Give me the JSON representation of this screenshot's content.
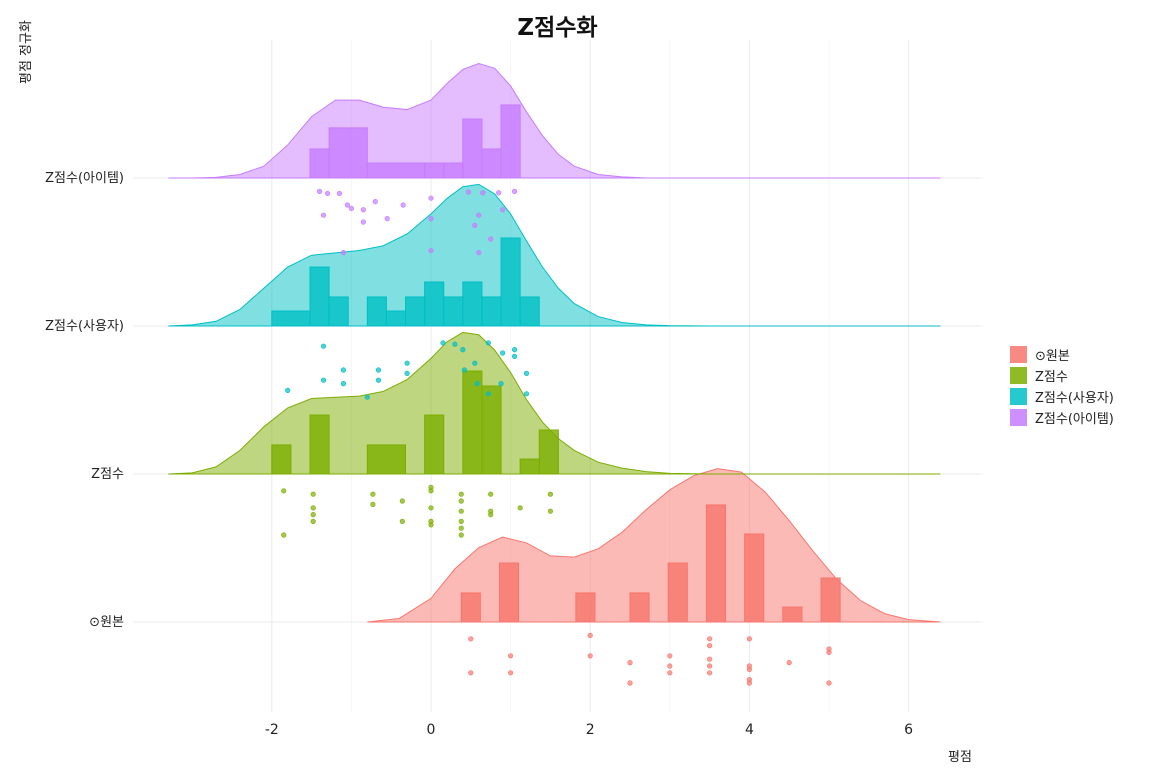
{
  "chart_data": {
    "type": "raincloud",
    "title": "Z점수화",
    "xlabel": "평점",
    "ylabel": "평점 정규화",
    "xlim": [
      -3.3,
      6.9
    ],
    "x_ticks": [
      -2,
      0,
      2,
      4,
      6
    ],
    "grid": true,
    "legend_position": "right",
    "series": [
      {
        "name": "⊙원본",
        "color": "#F8766D",
        "histogram": {
          "bins": [
            [
              0.38,
              0.62,
              0.33
            ],
            [
              0.86,
              1.1,
              0.67
            ],
            [
              1.82,
              2.06,
              0.33
            ],
            [
              2.5,
              2.74,
              0.33
            ],
            [
              2.98,
              3.22,
              0.67
            ],
            [
              3.46,
              3.7,
              1.33
            ],
            [
              3.94,
              4.18,
              1.0
            ],
            [
              4.42,
              4.66,
              0.17
            ],
            [
              4.9,
              5.14,
              0.5
            ]
          ]
        },
        "density": {
          "x": [
            -0.8,
            -0.4,
            0,
            0.3,
            0.6,
            0.9,
            1.2,
            1.5,
            1.8,
            2.1,
            2.4,
            2.7,
            3.0,
            3.3,
            3.6,
            3.9,
            4.2,
            4.5,
            4.8,
            5.1,
            5.4,
            5.7,
            6.0,
            6.4
          ],
          "y": [
            0.0,
            0.03,
            0.2,
            0.45,
            0.63,
            0.72,
            0.67,
            0.56,
            0.55,
            0.62,
            0.76,
            0.95,
            1.12,
            1.24,
            1.3,
            1.27,
            1.1,
            0.86,
            0.6,
            0.36,
            0.18,
            0.07,
            0.02,
            0.0
          ]
        },
        "points": [
          [
            0.5,
            0.1
          ],
          [
            0.5,
            0.6
          ],
          [
            1.0,
            0.35
          ],
          [
            1.0,
            0.6
          ],
          [
            2.0,
            0.05
          ],
          [
            2.0,
            0.35
          ],
          [
            2.5,
            0.45
          ],
          [
            2.5,
            0.75
          ],
          [
            3.0,
            0.35
          ],
          [
            3.0,
            0.5
          ],
          [
            3.0,
            0.6
          ],
          [
            3.5,
            0.1
          ],
          [
            3.5,
            0.2
          ],
          [
            3.5,
            0.4
          ],
          [
            3.5,
            0.5
          ],
          [
            3.5,
            0.6
          ],
          [
            4.0,
            0.1
          ],
          [
            4.0,
            0.5
          ],
          [
            4.0,
            0.55
          ],
          [
            4.0,
            0.7
          ],
          [
            4.0,
            0.75
          ],
          [
            4.5,
            0.45
          ],
          [
            5.0,
            0.25
          ],
          [
            5.0,
            0.3
          ],
          [
            5.0,
            0.75
          ]
        ]
      },
      {
        "name": "Z점수",
        "color": "#7CAE00",
        "histogram": {
          "bins": [
            [
              -2.0,
              -1.76,
              0.33
            ],
            [
              -1.52,
              -1.28,
              0.67
            ],
            [
              -0.8,
              -0.32,
              0.33
            ],
            [
              -0.08,
              0.16,
              0.67
            ],
            [
              0.4,
              0.64,
              1.17
            ],
            [
              0.64,
              0.88,
              1.0
            ],
            [
              1.12,
              1.36,
              0.17
            ],
            [
              1.36,
              1.6,
              0.5
            ]
          ]
        },
        "density": {
          "x": [
            -3.3,
            -3.0,
            -2.7,
            -2.4,
            -2.1,
            -1.8,
            -1.5,
            -1.2,
            -0.9,
            -0.6,
            -0.3,
            0.0,
            0.2,
            0.4,
            0.6,
            0.8,
            1.0,
            1.2,
            1.4,
            1.6,
            1.8,
            2.1,
            2.4,
            2.7,
            3.0,
            3.5,
            4.0,
            5.0,
            6.4
          ],
          "y": [
            0.0,
            0.01,
            0.06,
            0.2,
            0.4,
            0.56,
            0.64,
            0.65,
            0.66,
            0.7,
            0.8,
            0.98,
            1.12,
            1.2,
            1.18,
            1.05,
            0.86,
            0.63,
            0.44,
            0.3,
            0.2,
            0.1,
            0.05,
            0.02,
            0.005,
            0.0,
            0.0,
            0.0,
            0.0
          ]
        },
        "points": [
          [
            -1.85,
            0.1
          ],
          [
            -1.85,
            0.75
          ],
          [
            -1.48,
            0.15
          ],
          [
            -1.48,
            0.35
          ],
          [
            -1.48,
            0.45
          ],
          [
            -1.48,
            0.55
          ],
          [
            -0.73,
            0.15
          ],
          [
            -0.73,
            0.3
          ],
          [
            -0.36,
            0.25
          ],
          [
            -0.36,
            0.55
          ],
          [
            0.0,
            0.05
          ],
          [
            0.0,
            0.1
          ],
          [
            0.0,
            0.35
          ],
          [
            0.0,
            0.55
          ],
          [
            0.0,
            0.6
          ],
          [
            0.38,
            0.15
          ],
          [
            0.38,
            0.25
          ],
          [
            0.38,
            0.4
          ],
          [
            0.38,
            0.55
          ],
          [
            0.38,
            0.65
          ],
          [
            0.38,
            0.75
          ],
          [
            0.75,
            0.15
          ],
          [
            0.75,
            0.4
          ],
          [
            0.75,
            0.45
          ],
          [
            1.12,
            0.35
          ],
          [
            1.5,
            0.15
          ],
          [
            1.5,
            0.4
          ]
        ]
      },
      {
        "name": "Z점수(사용자)",
        "color": "#00BFC4",
        "histogram": {
          "bins": [
            [
              -2.0,
              -1.52,
              0.17
            ],
            [
              -1.52,
              -1.28,
              0.67
            ],
            [
              -1.28,
              -1.04,
              0.33
            ],
            [
              -0.8,
              -0.56,
              0.33
            ],
            [
              -0.56,
              -0.32,
              0.17
            ],
            [
              -0.32,
              -0.08,
              0.33
            ],
            [
              -0.08,
              0.16,
              0.5
            ],
            [
              0.16,
              0.4,
              0.33
            ],
            [
              0.4,
              0.64,
              0.5
            ],
            [
              0.64,
              0.88,
              0.33
            ],
            [
              0.88,
              1.12,
              1.0
            ],
            [
              1.12,
              1.36,
              0.33
            ]
          ]
        },
        "density": {
          "x": [
            -3.3,
            -3.0,
            -2.7,
            -2.4,
            -2.1,
            -1.8,
            -1.5,
            -1.2,
            -0.9,
            -0.6,
            -0.3,
            0.0,
            0.2,
            0.4,
            0.6,
            0.8,
            1.0,
            1.2,
            1.4,
            1.6,
            1.8,
            2.1,
            2.4,
            2.7,
            3.0,
            3.5,
            4.0,
            5.0,
            6.4
          ],
          "y": [
            0.0,
            0.01,
            0.04,
            0.14,
            0.32,
            0.5,
            0.6,
            0.62,
            0.64,
            0.68,
            0.78,
            0.95,
            1.08,
            1.18,
            1.2,
            1.12,
            0.95,
            0.72,
            0.5,
            0.32,
            0.19,
            0.08,
            0.03,
            0.01,
            0.003,
            0.0,
            0.0,
            0.0,
            0.0
          ]
        },
        "points": [
          [
            -1.8,
            0.8
          ],
          [
            -1.35,
            0.15
          ],
          [
            -1.35,
            0.65
          ],
          [
            -1.1,
            0.5
          ],
          [
            -1.1,
            0.7
          ],
          [
            -0.8,
            0.9
          ],
          [
            -0.66,
            0.5
          ],
          [
            -0.66,
            0.65
          ],
          [
            -0.3,
            0.4
          ],
          [
            -0.3,
            0.55
          ],
          [
            0.15,
            0.1
          ],
          [
            0.3,
            0.12
          ],
          [
            0.4,
            0.2
          ],
          [
            0.42,
            0.5
          ],
          [
            0.55,
            0.4
          ],
          [
            0.58,
            0.7
          ],
          [
            0.72,
            0.1
          ],
          [
            0.72,
            0.85
          ],
          [
            0.88,
            0.7
          ],
          [
            0.9,
            0.25
          ],
          [
            1.05,
            0.3
          ],
          [
            1.05,
            0.2
          ],
          [
            1.2,
            0.85
          ],
          [
            1.2,
            0.55
          ]
        ]
      },
      {
        "name": "Z점수(아이템)",
        "color": "#C77CFF",
        "histogram": {
          "bins": [
            [
              -1.52,
              -1.28,
              0.33
            ],
            [
              -1.28,
              -0.8,
              0.57
            ],
            [
              -0.8,
              -0.08,
              0.17
            ],
            [
              -0.08,
              0.16,
              0.17
            ],
            [
              0.16,
              0.4,
              0.17
            ],
            [
              0.4,
              0.64,
              0.67
            ],
            [
              0.64,
              0.88,
              0.33
            ],
            [
              0.88,
              1.12,
              0.83
            ]
          ]
        },
        "density": {
          "x": [
            -3.3,
            -3.0,
            -2.7,
            -2.4,
            -2.1,
            -1.8,
            -1.5,
            -1.2,
            -0.9,
            -0.6,
            -0.3,
            0.0,
            0.2,
            0.4,
            0.6,
            0.8,
            1.0,
            1.2,
            1.4,
            1.6,
            1.8,
            2.1,
            2.4,
            2.7,
            3.0,
            3.5,
            4.0,
            5.0,
            6.4
          ],
          "y": [
            0.0,
            0.0,
            0.005,
            0.03,
            0.1,
            0.28,
            0.52,
            0.66,
            0.66,
            0.6,
            0.58,
            0.66,
            0.8,
            0.92,
            0.97,
            0.93,
            0.78,
            0.56,
            0.36,
            0.2,
            0.1,
            0.03,
            0.01,
            0.0,
            0.0,
            0.0,
            0.0,
            0.0,
            0.0
          ]
        },
        "points": [
          [
            -1.4,
            0.05
          ],
          [
            -1.3,
            0.08
          ],
          [
            -1.15,
            0.08
          ],
          [
            -1.35,
            0.4
          ],
          [
            -1.1,
            0.95
          ],
          [
            -1.05,
            0.25
          ],
          [
            -1.0,
            0.3
          ],
          [
            -0.85,
            0.32
          ],
          [
            -0.85,
            0.5
          ],
          [
            -0.7,
            0.2
          ],
          [
            -0.55,
            0.45
          ],
          [
            -0.35,
            0.25
          ],
          [
            0.0,
            0.15
          ],
          [
            0.0,
            0.45
          ],
          [
            0.0,
            0.92
          ],
          [
            0.47,
            0.06
          ],
          [
            0.55,
            0.55
          ],
          [
            0.6,
            0.4
          ],
          [
            0.6,
            0.95
          ],
          [
            0.65,
            0.07
          ],
          [
            0.75,
            0.75
          ],
          [
            0.85,
            0.07
          ],
          [
            0.9,
            0.32
          ],
          [
            1.05,
            0.05
          ]
        ]
      }
    ]
  }
}
